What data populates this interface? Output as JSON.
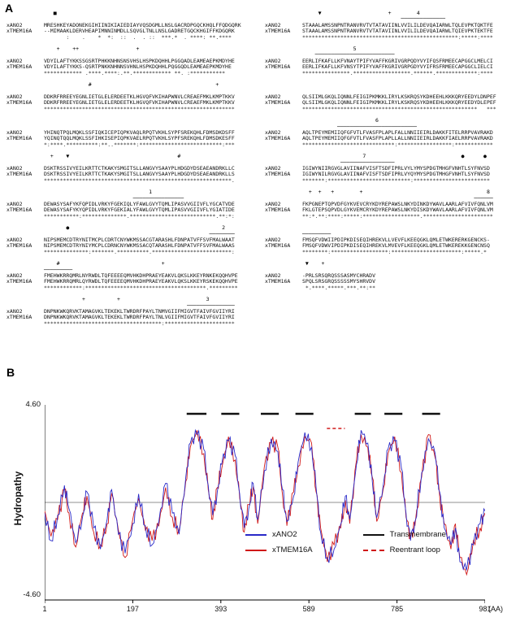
{
  "panelA": {
    "label": "A",
    "row_labels": [
      "xANO2",
      "xTMEM16A"
    ],
    "left_blocks": [
      {
        "m1": "   ■",
        "m2": "",
        "s1": "MRESHKEYADONEKGIHIINIKIAIEDIAYVQSDGMLLNSLGACRDPGQCKHQLFFQDGQRK",
        "s2": "--MIMAAKLDERVHEAPIMNNINMDLLSQVGLTNLLNSLGADRETGQCKHGIFFKDGQRK",
        "cons": "       :    .    *  *:  ::  .  . ::  ***.*  . ****: **.****"
      },
      {
        "m1": "    +    ++                  +",
        "m2": "",
        "s1": "VDYILAFTYKKSSGSRTPHKKNHNSNSVHSLHSPKDQHHLPGGQADLEAMEAEPKMDYHE",
        "s2": "VDYILAFTYKKS-QSRTPNKKNHNNSVHNLHSPKDQHHLPQGGQDLEAMEAEPKMDYHE",
        "cons": "************ .****.****:.**.************ **. :***********"
      },
      {
        "m1": "              #                                       +",
        "m2": "",
        "s1": "DDKRFRREEYEGNLIETGLELERDEETKLHGVQFVKIHAPWNVLCREAEFMKLKMPTKKV",
        "s2": "DDKRFRREEYEGNLIETGLELERDEETKLHGVQFVKIHAPWNVLCREAEFMKLKMPTKKV",
        "cons": "************************************************************"
      },
      {
        "m1": "",
        "m2": "",
        "s1": "YHINQTPQLMQKLSSFIQKICEPIQPKVAQLRPQTVKHLSYPFSREKQHLFDMSDKDSFF",
        "s2": "YQINQTQQLMQKLSSFIHKISEPIQPKVAELRPQTVKHLSYPFSREKQHLFDMSDKESFF",
        "cons": "*:****.**********:**..*******:**************************:***"
      },
      {
        "m1": "  +    ▼                                  #",
        "m2": "",
        "s1": "DSKTRSSIVYEILKRTTCTKAKYSMGITSLLANGVYSAAYPLHDGDYDSEAEANDRKLLC",
        "s2": "DSKTRSSIVYEILKRTTCTKAKYSMGITSLLANGVYSAAYPLHDGDYDSEAEANDRKLLS",
        "cons": "***********************************************************."
      },
      {
        "m1": "                                 1",
        "m2": "                            ────────────────",
        "s1": "DEWASYSAFYKFQPIDLVRKYFGEKIQLYFAWLGVYTQMLIPASVVGIIVFLYGCATVDE",
        "s2": "DEWASYSAFYKYQPIDLVRKYFGEKIALYFAWLGVYTQMLIPASVVGIIVFLYGIATIDE",
        "cons": "***********:**************.***************************.**:*:"
      },
      {
        "m1": "       ●                                                2",
        "m2": "                                                    ────────",
        "s1": "NIPSMEMCDTRYNITMCPLCDRTCNYWKMSSACGTARASHLFDNPATVFFSVFMALWAAT",
        "s2": "NIPSMEMCDTRYNIYMCPLCDRNCNYWKMSSACQTARASHLFDNPATVFFSVFMALWAAS",
        "cons": "**************:*******.**********.*************************:"
      },
      {
        "m1": "    #                                +",
        "m2": "─────────",
        "s1": "FMEHWKRRQMRLNYRWDLTQFEEEEQMVHKDHPRAEYEAKVLQKSLKKEYRNKEKQQHVPE",
        "s2": "FMEHWKRRQMRLQYRWDLTQFEEEEQMVHKDHPRAEYEAKVLQKSLKKEYRSKEKQQHVPE",
        "cons": "************:**************************************.*********"
      },
      {
        "m1": "            +          +                           3",
        "m2": "                                             ───────────────",
        "s1": "DNPNKWKQRVKTAMAGVKLTEKEKLTWRDRFPAYLTNMVGIIFMIGVTFAIVFGVIIYRI",
        "s2": "DNPNKWKQRVKTAMAGVKLTEKEKLTWRDRFPAYLTNLVGIIFMIGVTFAIVFGVIIYRI",
        "cons": "*************************************:**********************"
      }
    ],
    "right_blocks": [
      {
        "m1": "     ▼                     +        4",
        "m2": "                               ──────────────",
        "s1": "STAAALAMSSNPNTRANVRVTVTATAVIINLVVILILDEVQAIARWLTQLEVPKTQKTFE",
        "s2": "STAAALAMSSNPNTRANVRVTVTATAVIINLVVILILDEVQAIARWLTQIEVPKTEKTFE",
        "cons": "*************************************************:*****:****"
      },
      {
        "m1": "                5",
        "m2": "    ─────────────────────────",
        "s1": "EERLIFKAFLLKFVNAYTPIFYVAFFKGRIVGRPQDYVYIFQSFRMEECAPGGCLMELCI",
        "s2": "EERLIFKAFLLKFVNSYTPIFYVAFFKGRIVGRPGDYVYIFRSFRMEECAPGGCLIELCI",
        "cons": "***************.******************.******.*************:****"
      },
      {
        "m1": "",
        "m2": "",
        "s1": "QLSIIMLGKQLIQNNLFEIGIPKMKKLIRYLKSKRQSYKDHEEHLKKKQRYEEDYLDNPEF",
        "s2": "QLSIIMLGKQLIQNNLFEIGIPKMKKLIRYLKSKRQSYKDHEEHLKKKQRYEEDYDLEPEF",
        "cons": "*******************************************************   ***"
      },
      {
        "m1": "                       6",
        "m2": "           ─────────────────────────",
        "s1": "AQLTPEYMEMIIQFGFVTLFVASFPLAPLFALLNNIIEIRLDAKKFITELRRPVAVRAKD",
        "s2": "AQLTPEYMEMIIQFGFVTLFVASFPLAPLLALLNNIIEIRLDAKKFIAELRRPVAVRAKD",
        "cons": "*****************************:*****************:************"
      },
      {
        "m1": "                   7                              ●      ●",
        "m2": "            ─────────────────",
        "s1": "IGIWYNIIRGVGLAVIINAFVISFTSDFIPRLVYLYMYSPDGTMHGFVNHTLSYFNVSD",
        "s2": "IGIWYNILRGVGLAVIINAFVISFTSDFIPRLVYQYMYSPDGTMHGFVNHTLSYFNVSD",
        "cons": "*******:**************************:************************"
      },
      {
        "m1": "  +  +   +        +                                       8",
        "m2": "                                                      ──────",
        "s1": "FKPGNEPTQPVDFGYKVEVCRYKDYREPAWSLNKYDINKDYWAVLAARLAFVIVFQNLVM",
        "s2": "FKLGTEPSQPVDLGYKVEMCRYKDYREPAWSLNKYDISKDYWAVLAARLAFVIVFQNLVM",
        "cons": "**:*.**:****:*****:******************.**********************"
      },
      {
        "m1": "",
        "m2": "─────────",
        "s1": "FMSQFVDWIIPDIPKDISEQIHREKVLLVEVFLKEEQGKLQMLETWKERERKGENCKS-",
        "s2": "FMSQFVDWVIPDIPKDISEQIHREKVLMVEVFLKEEQGKLQMLETWKEREKKGENCNSQ",
        "cons": "********:******************:**********************:*****.*"
      },
      {
        "m1": " ▼    +",
        "m2": "",
        "s1": "-PRLSRSQRQSSSASMYCHRADV",
        "s2": "SPQLSRSGRQSSSSSMYSHRVDV",
        "cons": " *.****.*****.***.**:**"
      }
    ]
  },
  "panelB": {
    "label": "B",
    "ylabel": "Hydropathy",
    "y_top_label": "4.60",
    "y_bottom_label": "-4.60",
    "x_unit": "(AA)",
    "xticks": [
      "1",
      "197",
      "393",
      "589",
      "785",
      "981"
    ],
    "legend": [
      {
        "label": "xANO2",
        "color": "#2929c8",
        "style": "solid"
      },
      {
        "label": "xTMEM16A",
        "color": "#d01818",
        "style": "solid"
      },
      {
        "label": "Transmembrane",
        "color": "#111111",
        "style": "solid"
      },
      {
        "label": "Reentrant loop",
        "color": "#d01818",
        "style": "dashed"
      }
    ],
    "chart_data": {
      "type": "line",
      "xlabel": "(AA)",
      "ylabel": "Hydropathy",
      "xlim": [
        1,
        981
      ],
      "ylim": [
        -4.6,
        4.6
      ],
      "xtick_values": [
        1,
        197,
        393,
        589,
        785,
        981
      ],
      "x": [
        1,
        15,
        30,
        45,
        55,
        70,
        85,
        95,
        110,
        125,
        140,
        150,
        165,
        180,
        197,
        210,
        225,
        240,
        255,
        270,
        285,
        300,
        315,
        325,
        340,
        355,
        365,
        375,
        385,
        395,
        410,
        425,
        435,
        445,
        455,
        465,
        475,
        490,
        505,
        520,
        530,
        540,
        555,
        565,
        580,
        595,
        605,
        615,
        630,
        645,
        660,
        670,
        680,
        695,
        705,
        720,
        730,
        740,
        755,
        765,
        780,
        795,
        805,
        815,
        825,
        840,
        855,
        870,
        880,
        890,
        905,
        915,
        925,
        940,
        955,
        970,
        981
      ],
      "series": [
        {
          "name": "xANO2",
          "color": "#2929c8",
          "values": [
            -0.5,
            -1.8,
            -0.6,
            0.8,
            -0.3,
            -1.9,
            -0.7,
            0.5,
            -1.2,
            -2.2,
            -0.8,
            0.6,
            -1.5,
            -2.4,
            -1.0,
            0.4,
            -1.1,
            -2.0,
            -0.9,
            0.9,
            -0.5,
            -1.5,
            1.2,
            2.8,
            3.2,
            2.5,
            0.8,
            -0.6,
            0.5,
            1.8,
            2.9,
            2.2,
            0.4,
            -1.2,
            -0.3,
            0.9,
            -0.8,
            1.5,
            3.0,
            2.4,
            0.6,
            -0.9,
            0.3,
            1.9,
            3.3,
            2.6,
            0.7,
            -1.4,
            -2.6,
            -2.2,
            -1.0,
            0.3,
            -0.8,
            1.8,
            3.4,
            2.8,
            1.0,
            -0.7,
            0.9,
            2.5,
            2.9,
            1.6,
            -0.5,
            -1.8,
            -0.9,
            1.4,
            3.0,
            2.3,
            0.5,
            -1.2,
            -2.0,
            -1.2,
            -2.8,
            -3.2,
            -2.0,
            -1.0,
            -0.4
          ]
        },
        {
          "name": "xTMEM16A",
          "color": "#d01818",
          "values": [
            -0.4,
            -1.6,
            -0.8,
            0.6,
            -0.5,
            -2.1,
            -0.5,
            0.3,
            -1.4,
            -2.0,
            -1.0,
            0.4,
            -1.3,
            -2.6,
            -0.8,
            0.2,
            -1.3,
            -1.8,
            -1.1,
            0.7,
            -0.7,
            -1.3,
            1.0,
            2.6,
            3.4,
            2.3,
            0.6,
            -0.8,
            0.7,
            1.6,
            3.1,
            2.0,
            0.2,
            -1.4,
            -0.1,
            0.7,
            -1.0,
            1.7,
            2.8,
            2.6,
            0.4,
            -1.1,
            0.5,
            1.7,
            3.1,
            2.8,
            0.5,
            -1.2,
            -2.8,
            -2.0,
            -1.2,
            0.1,
            -1.0,
            2.0,
            3.2,
            2.6,
            1.2,
            -0.9,
            0.7,
            2.3,
            3.1,
            1.4,
            -0.7,
            -1.6,
            -1.1,
            1.2,
            3.2,
            2.1,
            0.3,
            -1.0,
            -2.2,
            -1.0,
            -2.6,
            -3.4,
            -1.8,
            -1.2,
            -0.5
          ]
        }
      ],
      "tm_bars_aa": [
        [
          317,
          361
        ],
        [
          394,
          434
        ],
        [
          482,
          522
        ],
        [
          559,
          599
        ],
        [
          691,
          727
        ],
        [
          757,
          797
        ],
        [
          841,
          881
        ]
      ],
      "reentrant_loop_aa": [
        [
          629,
          669
        ]
      ],
      "zero_line": true,
      "legend_position": "inside-bottom-right"
    }
  }
}
